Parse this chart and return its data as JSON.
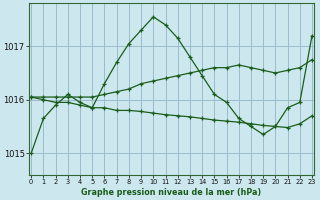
{
  "title": "Graphe pression niveau de la mer (hPa)",
  "bg_color": "#cce8ee",
  "grid_color": "#99bbcc",
  "line_color": "#1a5c1a",
  "xlim": [
    -0.2,
    23.2
  ],
  "ylim": [
    1014.6,
    1017.8
  ],
  "yticks": [
    1015,
    1016,
    1017
  ],
  "xticks": [
    0,
    1,
    2,
    3,
    4,
    5,
    6,
    7,
    8,
    9,
    10,
    11,
    12,
    13,
    14,
    15,
    16,
    17,
    18,
    19,
    20,
    21,
    22,
    23
  ],
  "series": [
    [
      1015.0,
      1015.65,
      1015.9,
      1016.1,
      1015.95,
      1015.85,
      1016.3,
      1016.7,
      1017.05,
      1017.3,
      1017.55,
      1017.4,
      1017.15,
      1016.8,
      1016.45,
      1016.1,
      1015.95,
      1015.65,
      1015.5,
      1015.35,
      1015.5,
      1015.85,
      1015.95,
      1017.2
    ],
    [
      1016.05,
      1016.05,
      1016.05,
      1016.05,
      1016.05,
      1016.05,
      1016.1,
      1016.15,
      1016.2,
      1016.3,
      1016.35,
      1016.4,
      1016.45,
      1016.5,
      1016.55,
      1016.6,
      1016.6,
      1016.65,
      1016.6,
      1016.55,
      1016.5,
      1016.55,
      1016.6,
      1016.75
    ],
    [
      1016.05,
      1016.0,
      1015.95,
      1015.95,
      1015.9,
      1015.85,
      1015.85,
      1015.8,
      1015.8,
      1015.78,
      1015.75,
      1015.72,
      1015.7,
      1015.68,
      1015.65,
      1015.62,
      1015.6,
      1015.58,
      1015.55,
      1015.52,
      1015.5,
      1015.48,
      1015.55,
      1015.7
    ]
  ]
}
